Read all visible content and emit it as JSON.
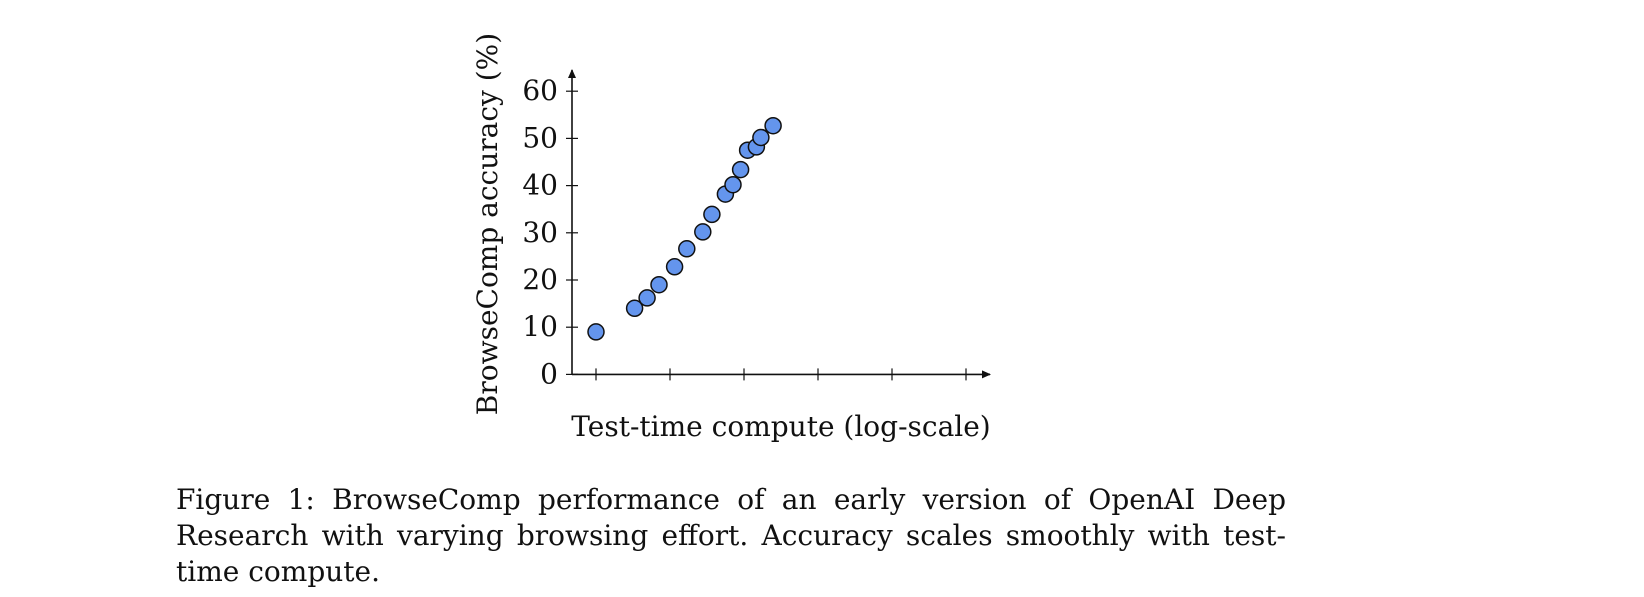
{
  "chart_data": {
    "type": "scatter",
    "title": "",
    "xlabel": "Test-time compute (log-scale)",
    "ylabel": "BrowseComp accuracy (%)",
    "x_scale": "log",
    "x_tick_labels": false,
    "ylim": [
      0,
      65
    ],
    "yticks": [
      0,
      10,
      20,
      30,
      40,
      50,
      60
    ],
    "grid": false,
    "legend": "none",
    "marker_color": "#6495ED",
    "marker_edge_color": "#111111",
    "points": [
      {
        "x": 1.0,
        "y": 9.0
      },
      {
        "x": 2.0,
        "y": 14.0
      },
      {
        "x": 2.5,
        "y": 16.2
      },
      {
        "x": 3.1,
        "y": 19.0
      },
      {
        "x": 4.1,
        "y": 22.8
      },
      {
        "x": 5.1,
        "y": 26.6
      },
      {
        "x": 6.8,
        "y": 30.2
      },
      {
        "x": 8.0,
        "y": 33.9
      },
      {
        "x": 10.2,
        "y": 38.2
      },
      {
        "x": 11.7,
        "y": 40.2
      },
      {
        "x": 13.4,
        "y": 43.4
      },
      {
        "x": 15.2,
        "y": 47.5
      },
      {
        "x": 17.8,
        "y": 48.2
      },
      {
        "x": 19.3,
        "y": 50.2
      },
      {
        "x": 24.0,
        "y": 52.7
      }
    ]
  },
  "caption": {
    "text": "Figure 1: BrowseComp performance of an early version of OpenAI Deep Research with varying browsing effort. Accuracy scales smoothly with test-time compute."
  }
}
